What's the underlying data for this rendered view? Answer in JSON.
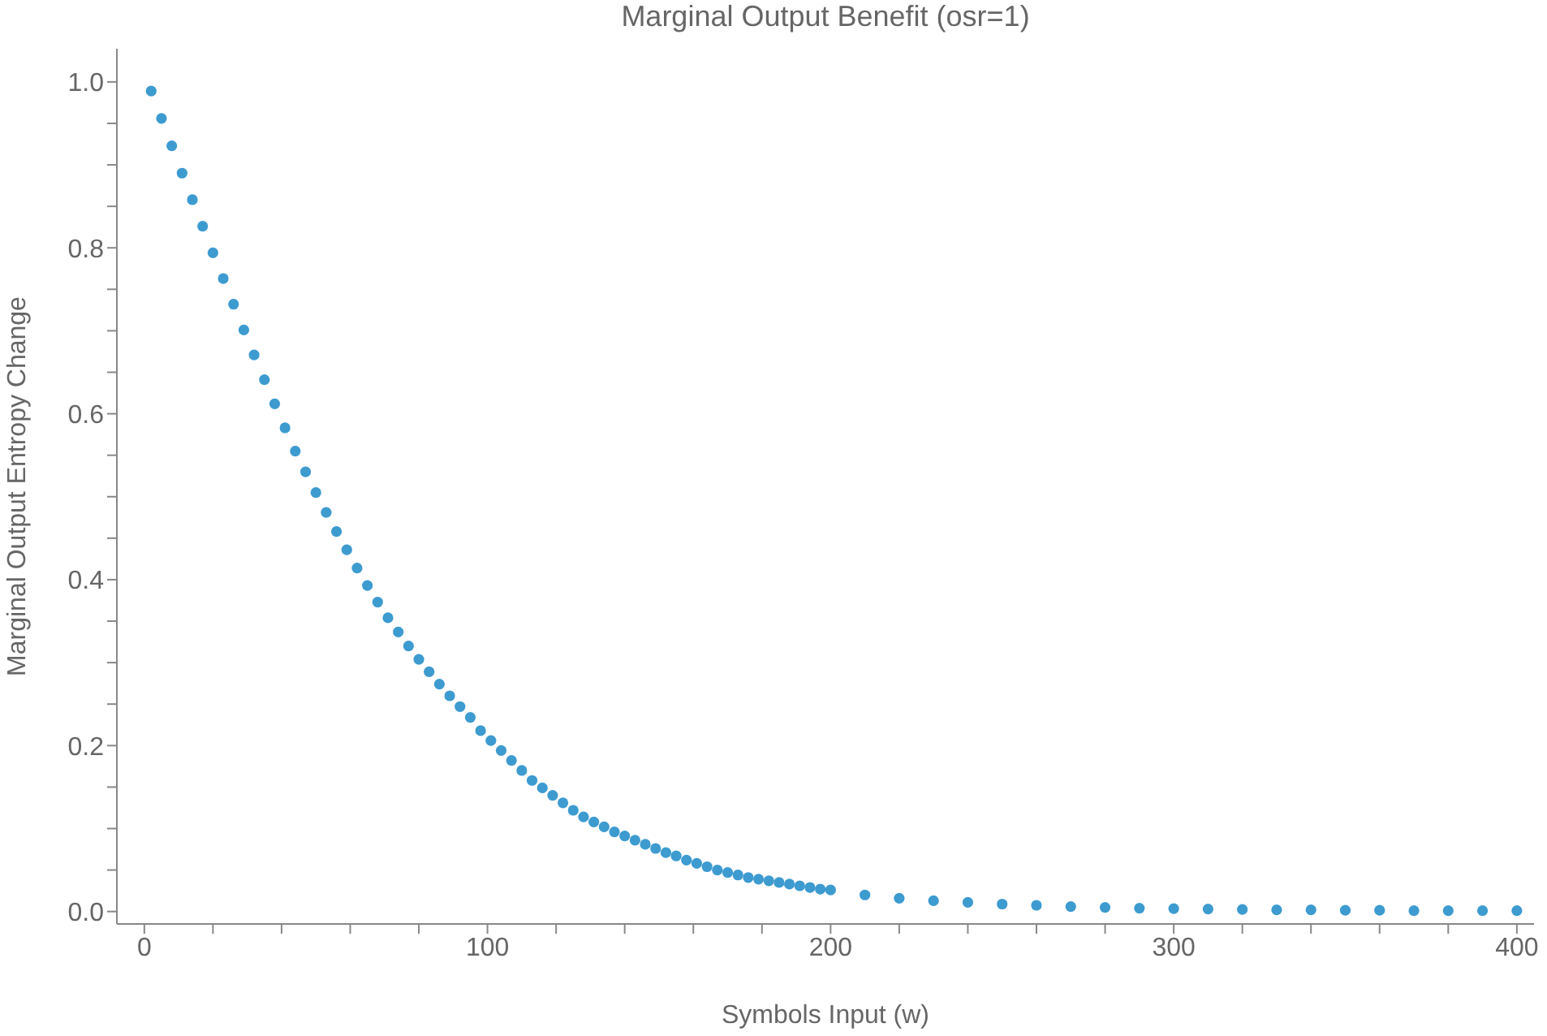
{
  "chart_data": {
    "type": "scatter",
    "title": "Marginal Output Benefit (osr=1)",
    "xlabel": "Symbols Input (w)",
    "ylabel": "Marginal Output Entropy Change",
    "marker": "circle",
    "x": [
      2,
      5,
      8,
      11,
      14,
      17,
      20,
      23,
      26,
      29,
      32,
      35,
      38,
      41,
      44,
      47,
      50,
      53,
      56,
      59,
      62,
      65,
      68,
      71,
      74,
      77,
      80,
      83,
      86,
      89,
      92,
      95,
      98,
      101,
      104,
      107,
      110,
      113,
      116,
      119,
      122,
      125,
      128,
      131,
      134,
      137,
      140,
      143,
      146,
      149,
      152,
      155,
      158,
      161,
      164,
      167,
      170,
      173,
      176,
      179,
      182,
      185,
      188,
      191,
      194,
      197,
      200,
      210,
      220,
      230,
      240,
      250,
      260,
      270,
      280,
      290,
      300,
      310,
      320,
      330,
      340,
      350,
      360,
      370,
      380,
      390,
      400
    ],
    "series": [
      {
        "color": "#3d9bd0",
        "values": [
          0.989,
          0.956,
          0.923,
          0.89,
          0.858,
          0.826,
          0.794,
          0.763,
          0.732,
          0.701,
          0.671,
          0.641,
          0.612,
          0.583,
          0.555,
          0.53,
          0.505,
          0.481,
          0.458,
          0.436,
          0.414,
          0.393,
          0.373,
          0.354,
          0.337,
          0.32,
          0.304,
          0.289,
          0.274,
          0.26,
          0.247,
          0.234,
          0.218,
          0.206,
          0.194,
          0.182,
          0.17,
          0.158,
          0.149,
          0.14,
          0.131,
          0.122,
          0.114,
          0.108,
          0.102,
          0.096,
          0.091,
          0.086,
          0.081,
          0.076,
          0.071,
          0.067,
          0.062,
          0.058,
          0.054,
          0.05,
          0.047,
          0.044,
          0.041,
          0.039,
          0.037,
          0.035,
          0.033,
          0.031,
          0.029,
          0.027,
          0.026,
          0.02,
          0.016,
          0.013,
          0.011,
          0.009,
          0.0075,
          0.006,
          0.005,
          0.004,
          0.0035,
          0.003,
          0.0025,
          0.002,
          0.002,
          0.0015,
          0.0015,
          0.001,
          0.001,
          0.001,
          0.001
        ]
      }
    ],
    "xlim": [
      -8,
      405
    ],
    "ylim": [
      -0.015,
      1.04
    ],
    "xticks": [
      0,
      {
        "value": 20,
        "label": null
      },
      {
        "value": 40,
        "label": null
      },
      {
        "value": 60,
        "label": null
      },
      {
        "value": 80,
        "label": null
      },
      100,
      {
        "value": 120,
        "label": null
      },
      {
        "value": 140,
        "label": null
      },
      {
        "value": 160,
        "label": null
      },
      {
        "value": 180,
        "label": null
      },
      200,
      {
        "value": 220,
        "label": null
      },
      {
        "value": 240,
        "label": null
      },
      {
        "value": 260,
        "label": null
      },
      {
        "value": 280,
        "label": null
      },
      300,
      {
        "value": 320,
        "label": null
      },
      {
        "value": 340,
        "label": null
      },
      {
        "value": 360,
        "label": null
      },
      {
        "value": 380,
        "label": null
      },
      400
    ],
    "yticks": [
      {
        "value": 0,
        "label": "0.0"
      },
      {
        "value": 0.05,
        "label": null
      },
      {
        "value": 0.1,
        "label": null
      },
      {
        "value": 0.15,
        "label": null
      },
      0.2,
      {
        "value": 0.25,
        "label": null
      },
      {
        "value": 0.3,
        "label": null
      },
      {
        "value": 0.35,
        "label": null
      },
      0.4,
      {
        "value": 0.45,
        "label": null
      },
      {
        "value": 0.5,
        "label": null
      },
      {
        "value": 0.55,
        "label": null
      },
      0.6,
      {
        "value": 0.65,
        "label": null
      },
      {
        "value": 0.7,
        "label": null
      },
      {
        "value": 0.75,
        "label": null
      },
      0.8,
      {
        "value": 0.85,
        "label": null
      },
      {
        "value": 0.9,
        "label": null
      },
      {
        "value": 0.95,
        "label": null
      },
      {
        "value": 1,
        "label": "1.0"
      }
    ]
  }
}
